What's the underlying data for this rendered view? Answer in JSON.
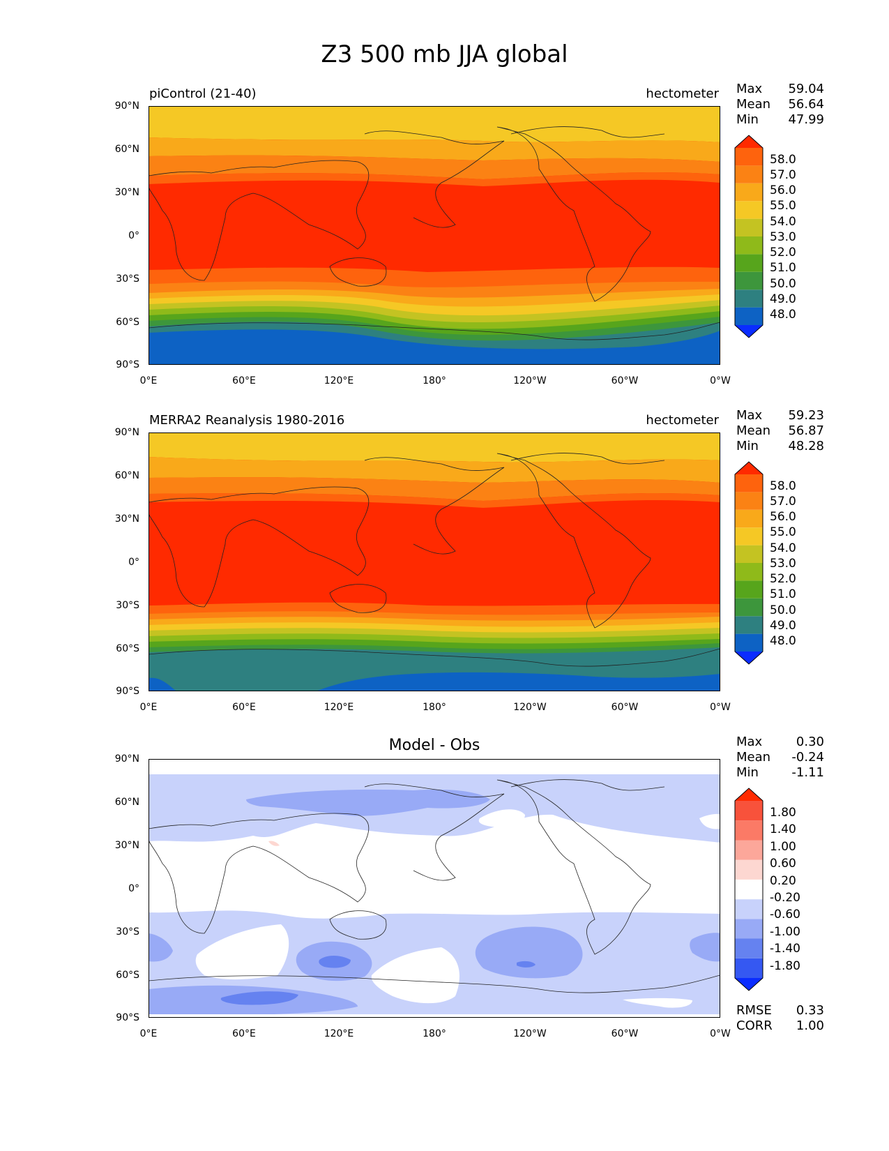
{
  "figure": {
    "title": "Z3 500 mb JJA global"
  },
  "axis_ticks": {
    "lat": [
      "90°N",
      "60°N",
      "30°N",
      "0°",
      "30°S",
      "60°S",
      "90°S"
    ],
    "lon": [
      "0°E",
      "60°E",
      "120°E",
      "180°",
      "120°W",
      "60°W",
      "0°W"
    ]
  },
  "panels": [
    {
      "title_left": "piControl (21-40)",
      "title_right": "hectometer",
      "stats": [
        {
          "label": "Max",
          "value": "59.04"
        },
        {
          "label": "Mean",
          "value": "56.64"
        },
        {
          "label": "Min",
          "value": "47.99"
        }
      ],
      "colorbar": {
        "levels": [
          "58.0",
          "57.0",
          "56.0",
          "55.0",
          "54.0",
          "53.0",
          "52.0",
          "51.0",
          "50.0",
          "49.0",
          "48.0"
        ],
        "colors": [
          "#0a2cff",
          "#0d62c4",
          "#2e8080",
          "#3d963c",
          "#57a51c",
          "#8fba1a",
          "#c4c322",
          "#f5c825",
          "#f9a91a",
          "#fb8214",
          "#fe630d",
          "#ff2a00"
        ]
      }
    },
    {
      "title_left": "MERRA2 Reanalysis 1980-2016",
      "title_right": "hectometer",
      "stats": [
        {
          "label": "Max",
          "value": "59.23"
        },
        {
          "label": "Mean",
          "value": "56.87"
        },
        {
          "label": "Min",
          "value": "48.28"
        }
      ],
      "colorbar": {
        "levels": [
          "58.0",
          "57.0",
          "56.0",
          "55.0",
          "54.0",
          "53.0",
          "52.0",
          "51.0",
          "50.0",
          "49.0",
          "48.0"
        ],
        "colors": [
          "#0a2cff",
          "#0d62c4",
          "#2e8080",
          "#3d963c",
          "#57a51c",
          "#8fba1a",
          "#c4c322",
          "#f5c825",
          "#f9a91a",
          "#fb8214",
          "#fe630d",
          "#ff2a00"
        ]
      }
    },
    {
      "title_center": "Model - Obs",
      "stats": [
        {
          "label": "Max",
          "value": "0.30"
        },
        {
          "label": "Mean",
          "value": "-0.24"
        },
        {
          "label": "Min",
          "value": "-1.11"
        }
      ],
      "colorbar": {
        "levels": [
          "1.80",
          "1.40",
          "1.00",
          "0.60",
          "0.20",
          "-0.20",
          "-0.60",
          "-1.00",
          "-1.40",
          "-1.80"
        ],
        "colors": [
          "#0a2cff",
          "#3558f2",
          "#6582f0",
          "#98aaf6",
          "#c8d2fb",
          "#ffffff",
          "#fdd7d1",
          "#fca79a",
          "#fb7a66",
          "#f8523b",
          "#ff2a00"
        ]
      },
      "metrics": [
        {
          "label": "RMSE",
          "value": "0.33"
        },
        {
          "label": "CORR",
          "value": "1.00"
        }
      ]
    }
  ]
}
